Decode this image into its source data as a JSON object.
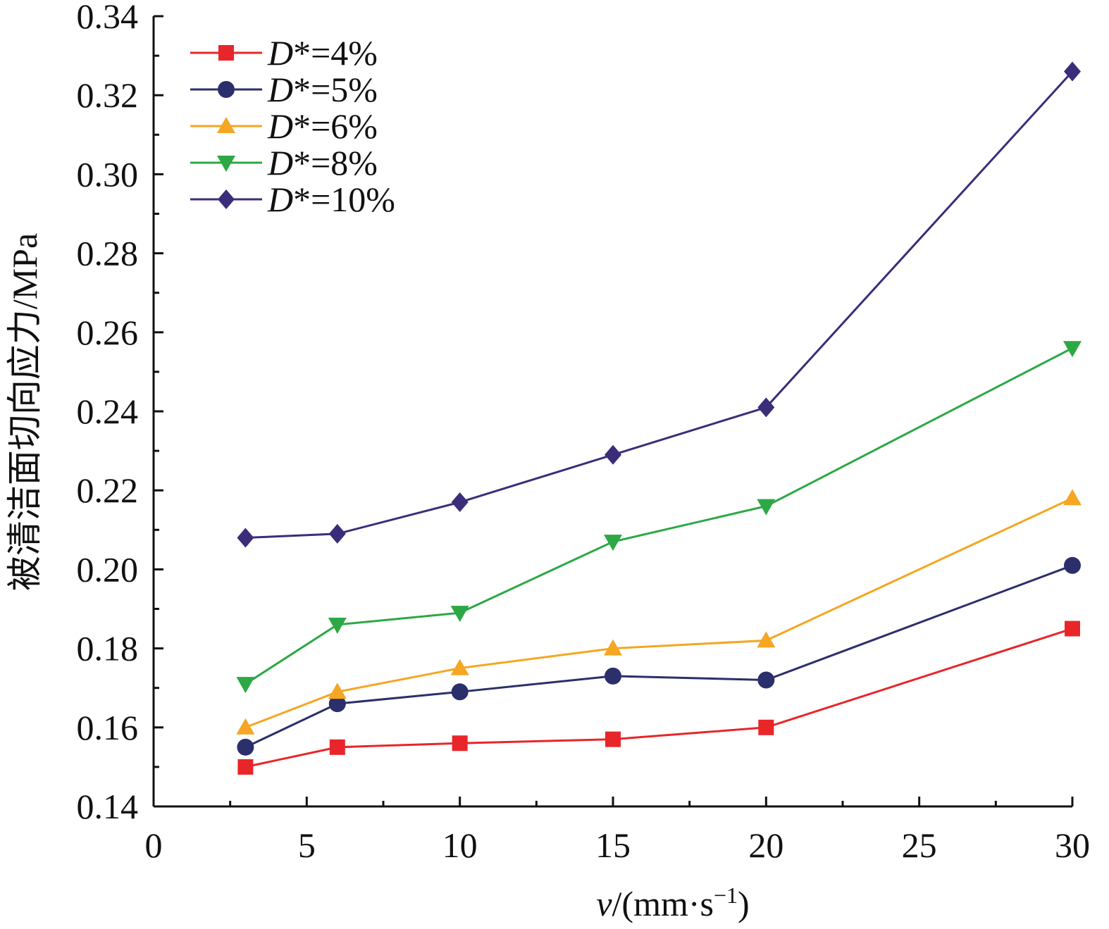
{
  "chart_data": {
    "type": "line",
    "xlabel": {
      "var": "v",
      "rest": "/(mm·s",
      "sup": "−1",
      "close": ")"
    },
    "ylabel": "被清洁面切向应力/MPa",
    "xlim": [
      0,
      30
    ],
    "ylim": [
      0.14,
      0.34
    ],
    "xticks": [
      0,
      5,
      10,
      15,
      20,
      25,
      30
    ],
    "yticks": [
      0.14,
      0.16,
      0.18,
      0.2,
      0.22,
      0.24,
      0.26,
      0.28,
      0.3,
      0.32,
      0.34
    ],
    "ytick_labels": [
      "0.14",
      "0.16",
      "0.18",
      "0.20",
      "0.22",
      "0.24",
      "0.26",
      "0.28",
      "0.30",
      "0.32",
      "0.34"
    ],
    "grid": false,
    "legend_position": "top-left",
    "x": [
      3,
      6,
      10,
      15,
      20,
      30
    ],
    "series": [
      {
        "name": "D*=4%",
        "var": "D",
        "rest": "*=4%",
        "color": "#e8262a",
        "marker": "square",
        "values": [
          0.15,
          0.155,
          0.156,
          0.157,
          0.16,
          0.185
        ]
      },
      {
        "name": "D*=5%",
        "var": "D",
        "rest": "*=5%",
        "color": "#2b2f6b",
        "marker": "circle",
        "values": [
          0.155,
          0.166,
          0.169,
          0.173,
          0.172,
          0.201
        ]
      },
      {
        "name": "D*=6%",
        "var": "D",
        "rest": "*=6%",
        "color": "#f5a623",
        "marker": "triangle-up",
        "values": [
          0.16,
          0.169,
          0.175,
          0.18,
          0.182,
          0.218
        ]
      },
      {
        "name": "D*=8%",
        "var": "D",
        "rest": "*=8%",
        "color": "#2ca845",
        "marker": "triangle-down",
        "values": [
          0.171,
          0.186,
          0.189,
          0.207,
          0.216,
          0.256
        ]
      },
      {
        "name": "D*=10%",
        "var": "D",
        "rest": "*=10%",
        "color": "#3b2d7a",
        "marker": "diamond",
        "values": [
          0.208,
          0.209,
          0.217,
          0.229,
          0.241,
          0.326
        ]
      }
    ]
  }
}
